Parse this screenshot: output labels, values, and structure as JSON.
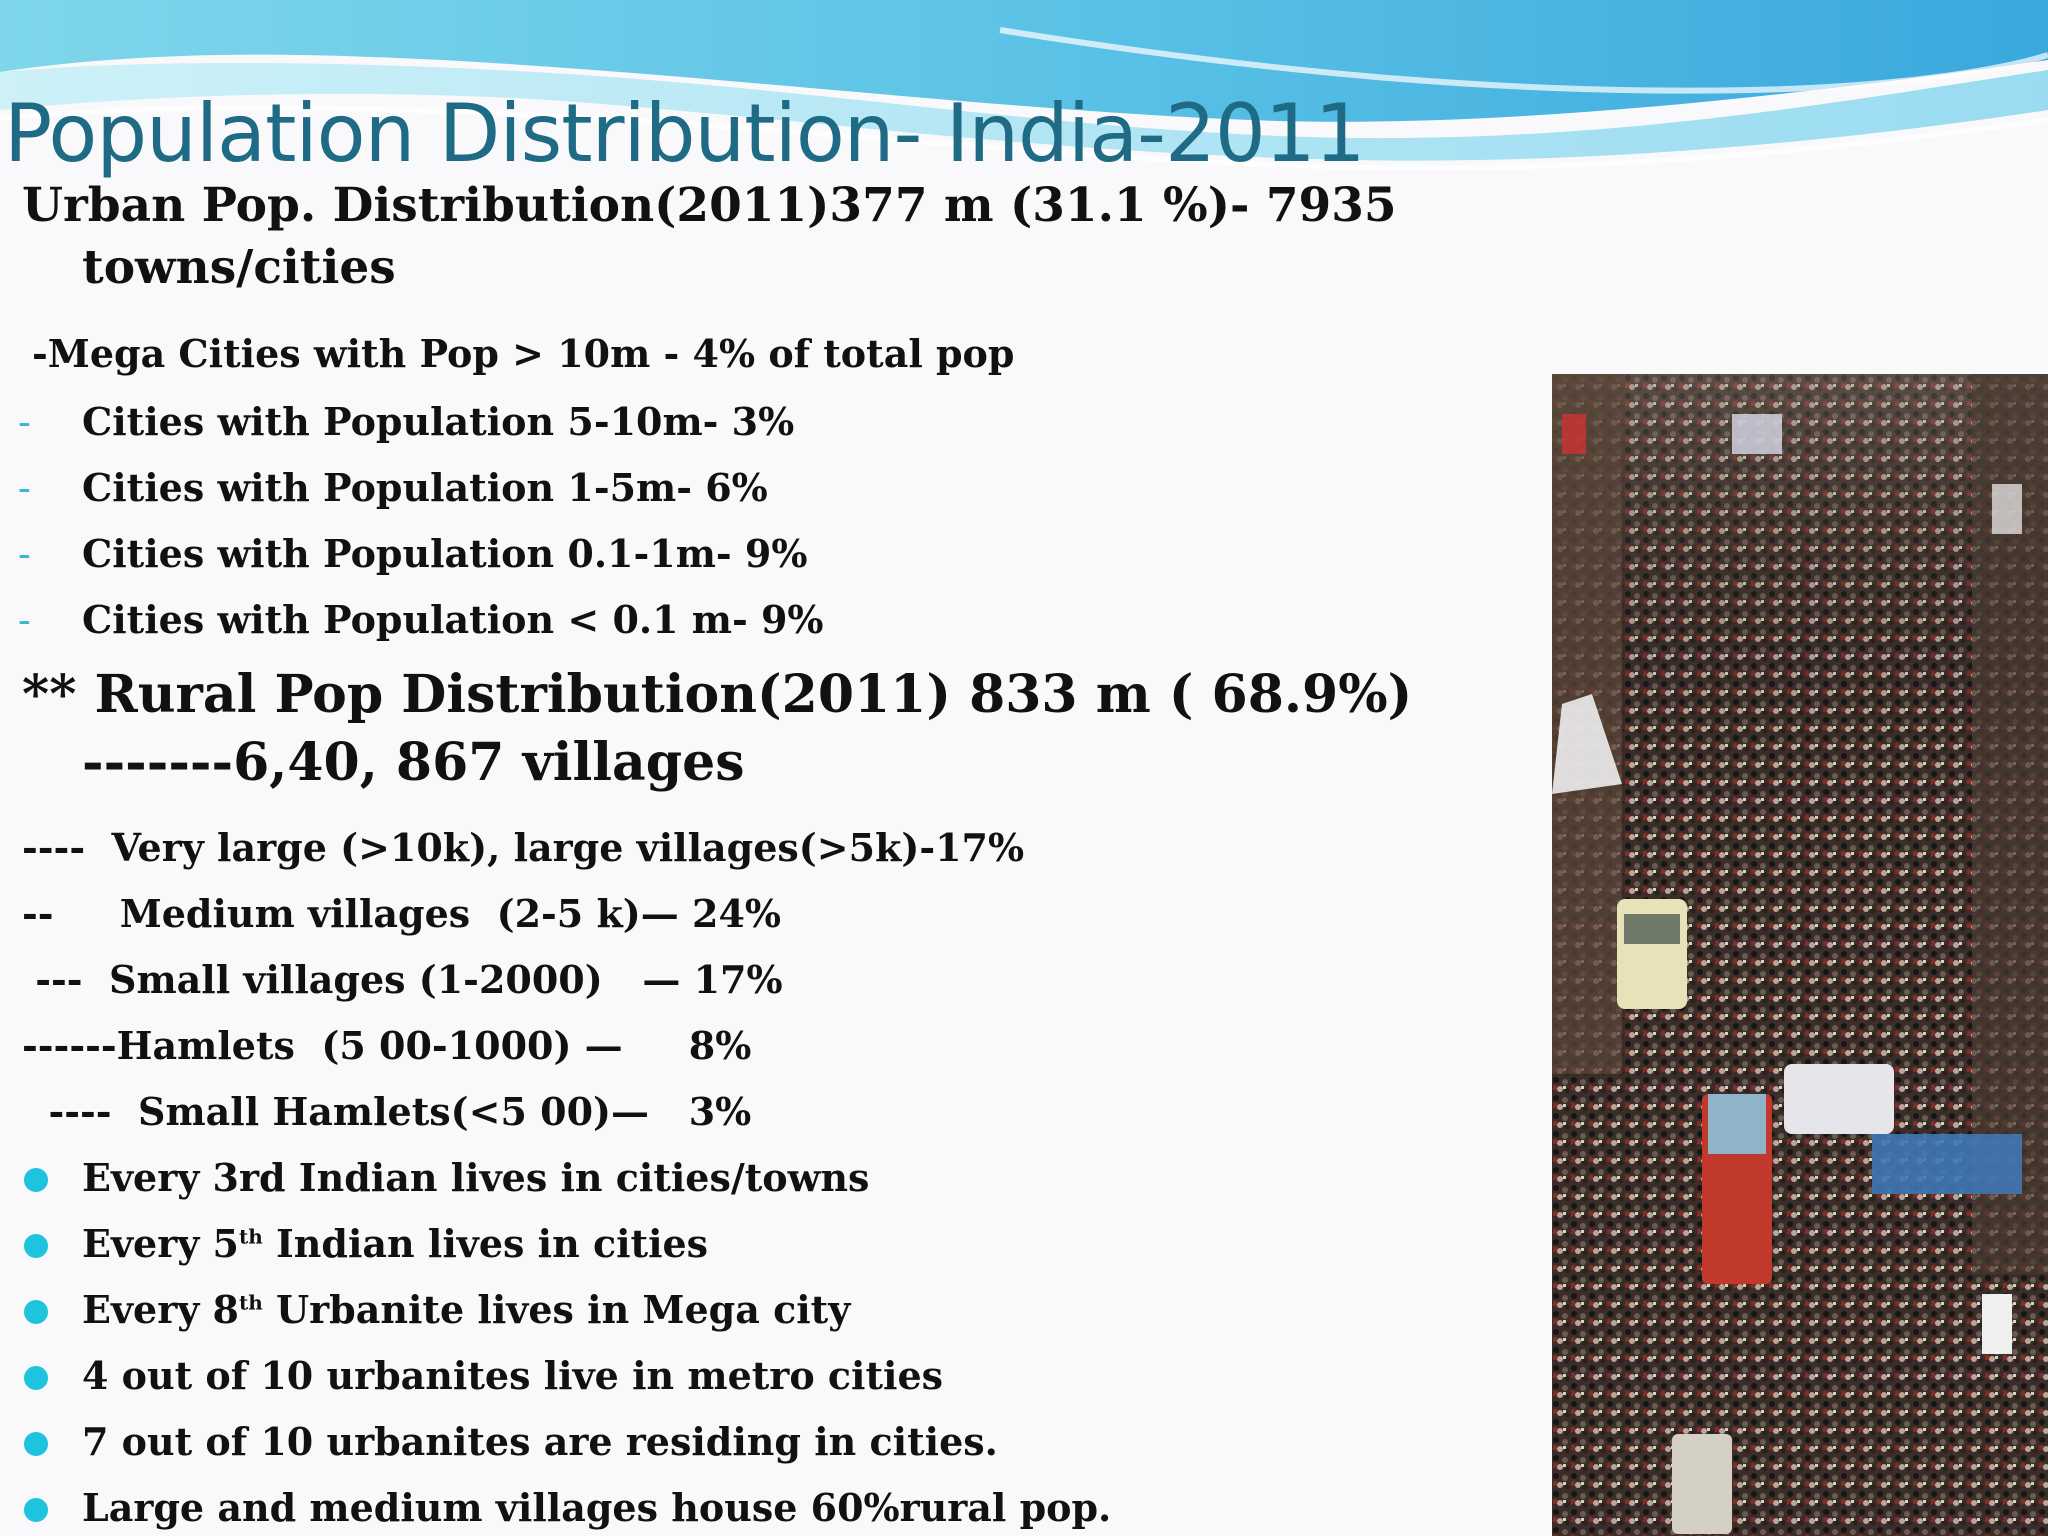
{
  "title": "Population Distribution- India-2011",
  "urban": {
    "line1": "Urban Pop. Distribution(2011)377 m (31.1 %)- 7935",
    "line2": "towns/cities",
    "mega": "-Mega Cities  with Pop  > 10m  -       4% of total pop",
    "items": [
      {
        "marker": "-",
        "text": "Cities  with  Population  5-10m-    3%"
      },
      {
        "marker": "-",
        "text": "Cities  with  Population  1-5m-      6%"
      },
      {
        "marker": "-",
        "text": "Cities  with  Population  0.1-1m-   9%"
      },
      {
        "marker": "-",
        "text": "Cities with  Population  < 0.1 m-   9%"
      }
    ]
  },
  "rural": {
    "line1": "** Rural Pop Distribution(2011)   833 m ( 68.9%)",
    "line2": "-------6,40, 867 villages",
    "items": [
      "----  Very large (>10k), large villages(>5k)-17%",
      "--     Medium villages  (2-5 k)— 24%",
      " ---  Small villages (1-2000)   — 17%",
      "------Hamlets  (5 00-1000) —     8%",
      "  ----  Small Hamlets(<5 00)—   3%"
    ]
  },
  "bullets": [
    {
      "pre": "Every 3rd Indian lives in cities/towns",
      "sup": "",
      "post": ""
    },
    {
      "pre": "Every 5",
      "sup": "th",
      "post": " Indian lives in cities"
    },
    {
      "pre": "Every 8",
      "sup": "th",
      "post": " Urbanite lives in Mega city"
    },
    {
      "pre": "4 out of 10 urbanites live in metro cities",
      "sup": "",
      "post": ""
    },
    {
      "pre": "7  out of 10 urbanites are residing in cities.",
      "sup": "",
      "post": ""
    },
    {
      "pre": "Large and medium villages house 60%rural pop.",
      "sup": "",
      "post": ""
    }
  ],
  "colors": {
    "title": "#1f6b85",
    "bullet": "#1ec3dd",
    "dash": "#36b7d0"
  },
  "image": {
    "icon": "crowded-street-photo"
  }
}
